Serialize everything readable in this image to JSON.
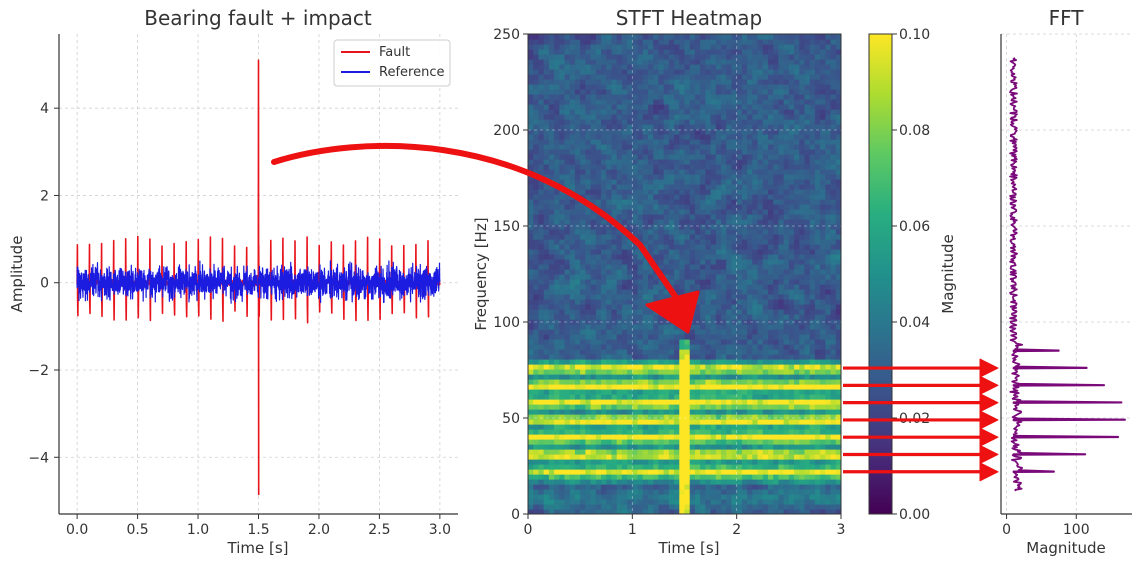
{
  "chart_data": [
    {
      "type": "line",
      "title": "Bearing fault + impact",
      "xlabel": "Time [s]",
      "ylabel": "Amplitude",
      "xlim": [
        -0.15,
        3.15
      ],
      "ylim": [
        -5.3,
        5.7
      ],
      "x_ticks": [
        0.0,
        0.5,
        1.0,
        1.5,
        2.0,
        2.5,
        3.0
      ],
      "x_tick_labels": [
        "0.0",
        "0.5",
        "1.0",
        "1.5",
        "2.0",
        "2.5",
        "3.0"
      ],
      "y_ticks": [
        -4,
        -2,
        0,
        2,
        4
      ],
      "y_tick_labels": [
        "−4",
        "−2",
        "0",
        "2",
        "4"
      ],
      "grid": true,
      "legend_position": "top-right",
      "series": [
        {
          "name": "Fault",
          "color": "#e8141c",
          "description": "periodic fault impulses about every 0.1 s with amplitude about ±1, plus a single large impact at t = 1.5 s",
          "impulse_period": 0.1,
          "impulse_amplitude": 1.0,
          "impact_time": 1.5,
          "impact_peak": 5.1,
          "impact_trough": -4.85
        },
        {
          "name": "Reference",
          "color": "#1c1ce0",
          "description": "broadband noise about 0 with amplitude about ±0.5",
          "noise_amplitude": 0.45
        }
      ]
    },
    {
      "type": "heatmap",
      "title": "STFT Heatmap",
      "xlabel": "Time [s]",
      "ylabel": "Frequency [Hz]",
      "xlim": [
        0,
        3
      ],
      "ylim": [
        0,
        250
      ],
      "x_ticks": [
        0,
        1,
        2,
        3
      ],
      "x_tick_labels": [
        "0",
        "1",
        "2",
        "3"
      ],
      "y_ticks": [
        0,
        50,
        100,
        150,
        200,
        250
      ],
      "y_tick_labels": [
        "0",
        "50",
        "100",
        "150",
        "200",
        "250"
      ],
      "grid": true,
      "colormap": "viridis",
      "colorbar": {
        "label": "Magnitude",
        "range": [
          0.0,
          0.1
        ],
        "ticks": [
          0.0,
          0.02,
          0.04,
          0.06,
          0.08,
          0.1
        ],
        "tick_labels": [
          "0.00",
          "0.02",
          "0.04",
          "0.06",
          "0.08",
          "0.10"
        ]
      },
      "bright_bands_hz": [
        22,
        31,
        40,
        49,
        58,
        67,
        76
      ],
      "impact_time": 1.5,
      "impact_max_freq_hz": 92
    },
    {
      "type": "line",
      "title": "FFT",
      "xlabel": "Magnitude",
      "ylabel": "",
      "orientation": "horizontal",
      "xlim": [
        -8,
        180
      ],
      "ylim": [
        0,
        250
      ],
      "x_ticks": [
        0,
        100
      ],
      "x_tick_labels": [
        "0",
        "100"
      ],
      "grid": true,
      "series": [
        {
          "color": "#7a0a7a",
          "baseline_magnitude": 10,
          "frequency_range_hz": [
            12,
            238
          ],
          "peaks": [
            {
              "freq_hz": 22,
              "magnitude": 68
            },
            {
              "freq_hz": 31,
              "magnitude": 113
            },
            {
              "freq_hz": 40,
              "magnitude": 160
            },
            {
              "freq_hz": 49,
              "magnitude": 170
            },
            {
              "freq_hz": 58,
              "magnitude": 165
            },
            {
              "freq_hz": 67,
              "magnitude": 140
            },
            {
              "freq_hz": 76,
              "magnitude": 115
            },
            {
              "freq_hz": 85,
              "magnitude": 75
            }
          ]
        }
      ]
    }
  ],
  "annotations": {
    "impact_arrow_color": "#ee1111",
    "band_arrow_color": "#ee1111",
    "band_arrows_hz": [
      22,
      31,
      40,
      49,
      58,
      67,
      76
    ]
  }
}
